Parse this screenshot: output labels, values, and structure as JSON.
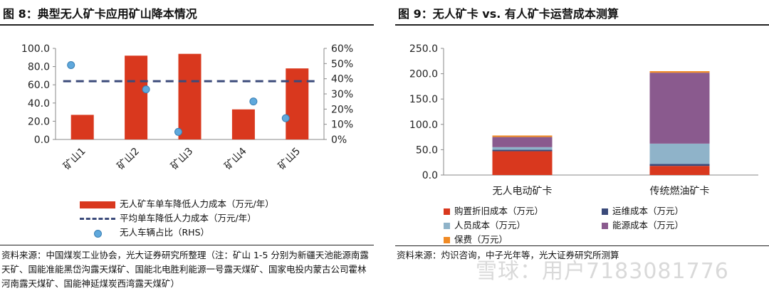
{
  "left": {
    "title": "图 8：典型无人矿卡应用矿山降本情况",
    "source": "资料来源：中国煤炭工业协会，光大证券研究所整理（注：矿山 1-5 分别为新疆天池能源南露天矿、国能准能黑岱沟露天煤矿、国能北电胜利能源一号露天煤矿、国家电投内蒙古公司霍林河南露天煤矿、国能神延煤炭西湾露天煤矿）",
    "legend": {
      "bar": "无人矿车单车降低人力成本（万元/年）",
      "line": "平均单车降低人力成本（万元/年）",
      "scatter": "无人车辆占比（RHS）"
    }
  },
  "right": {
    "title": "图 9：无人矿卡 vs. 有人矿卡运营成本测算",
    "source": "资料来源：灼识咨询，中子光年等，光大证券研究所测算",
    "legend": [
      {
        "label": "购置折旧成本（万元）",
        "color": "#d9381e"
      },
      {
        "label": "运维成本（万元）",
        "color": "#3b4a7a"
      },
      {
        "label": "人员成本（万元）",
        "color": "#8fb3c9"
      },
      {
        "label": "能源成本（万元）",
        "color": "#8a5a8e"
      },
      {
        "label": "保费（万元）",
        "color": "#f08a24"
      }
    ]
  },
  "chart_data": [
    {
      "type": "bar",
      "categories": [
        "矿山1",
        "矿山2",
        "矿山3",
        "矿山4",
        "矿山5"
      ],
      "series": [
        {
          "name": "无人矿车单车降低人力成本（万元/年）",
          "kind": "bar",
          "axis": "left",
          "color": "#d9381e",
          "values": [
            27,
            92,
            94,
            33,
            78
          ]
        },
        {
          "name": "平均单车降低人力成本（万元/年）",
          "kind": "line",
          "axis": "left",
          "color": "#3b4a7a",
          "values": [
            64,
            64,
            64,
            64,
            64
          ]
        },
        {
          "name": "无人车辆占比（RHS）",
          "kind": "scatter",
          "axis": "right",
          "color": "#5fa8dc",
          "values": [
            0.49,
            0.33,
            0.05,
            0.25,
            0.14
          ]
        }
      ],
      "ylim": [
        0,
        100
      ],
      "yticks": [
        "0.0",
        "20.0",
        "40.0",
        "60.0",
        "80.0",
        "100.0"
      ],
      "y2lim": [
        0,
        0.6
      ],
      "y2ticks": [
        "0%",
        "10%",
        "20%",
        "30%",
        "40%",
        "50%",
        "60%"
      ],
      "grid": false,
      "legend_position": "bottom"
    },
    {
      "type": "bar",
      "stacked": true,
      "categories": [
        "无人电动矿卡",
        "传统燃油矿卡"
      ],
      "series": [
        {
          "name": "购置折旧成本（万元）",
          "color": "#d9381e",
          "values": [
            47,
            18
          ]
        },
        {
          "name": "运维成本（万元）",
          "color": "#3b4a7a",
          "values": [
            3,
            4
          ]
        },
        {
          "name": "人员成本（万元）",
          "color": "#8fb3c9",
          "values": [
            5,
            40
          ]
        },
        {
          "name": "能源成本（万元）",
          "color": "#8a5a8e",
          "values": [
            20,
            140
          ]
        },
        {
          "name": "保费（万元）",
          "color": "#f08a24",
          "values": [
            3,
            3
          ]
        }
      ],
      "ylim": [
        0,
        250
      ],
      "yticks": [
        "0.0",
        "50.0",
        "100.0",
        "150.0",
        "200.0",
        "250.0"
      ],
      "grid": false,
      "legend_position": "bottom"
    }
  ],
  "watermark": "雪球：用户7183081776"
}
